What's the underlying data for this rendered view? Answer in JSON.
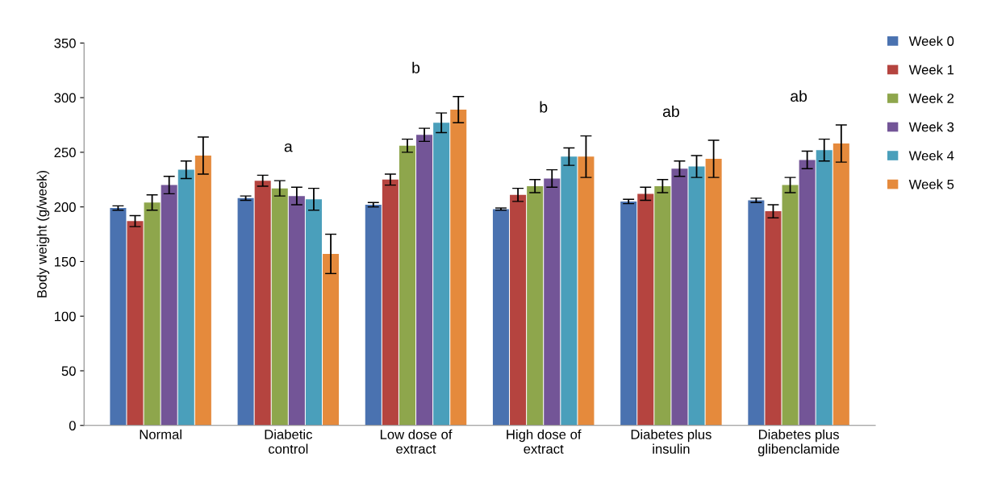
{
  "chart_data": {
    "type": "bar",
    "ylabel": "Body weight (g/week)",
    "categories": [
      "Normal",
      "Diabetic\ncontrol",
      "Low dose of\nextract",
      "High dose of\nextract",
      "Diabetes plus\ninsulin",
      "Diabetes plus\nglibenclamide"
    ],
    "series": [
      {
        "name": "Week 0",
        "color": "#4a72b0",
        "values": [
          199,
          208,
          202,
          198,
          205,
          206
        ],
        "errors": [
          2,
          2,
          2,
          1,
          2,
          2
        ]
      },
      {
        "name": "Week 1",
        "color": "#b5443f",
        "values": [
          187,
          224,
          225,
          211,
          212,
          196
        ],
        "errors": [
          5,
          5,
          5,
          6,
          6,
          6
        ]
      },
      {
        "name": "Week 2",
        "color": "#8ea64c",
        "values": [
          204,
          217,
          256,
          219,
          219,
          220
        ],
        "errors": [
          7,
          7,
          6,
          6,
          6,
          7
        ]
      },
      {
        "name": "Week 3",
        "color": "#735597",
        "values": [
          220,
          210,
          266,
          226,
          235,
          243
        ],
        "errors": [
          8,
          8,
          6,
          8,
          7,
          8
        ]
      },
      {
        "name": "Week 4",
        "color": "#4a9fbb",
        "values": [
          234,
          207,
          277,
          246,
          237,
          252
        ],
        "errors": [
          8,
          10,
          9,
          8,
          10,
          10
        ]
      },
      {
        "name": "Week 5",
        "color": "#e58a3c",
        "values": [
          247,
          157,
          289,
          246,
          244,
          258
        ],
        "errors": [
          17,
          18,
          12,
          19,
          17,
          17
        ]
      }
    ],
    "annotations": [
      "a",
      "b",
      "b",
      "ab",
      "ab"
    ],
    "ylim": [
      0,
      350
    ],
    "yticks": [
      0,
      50,
      100,
      150,
      200,
      250,
      300,
      350
    ],
    "grid": false,
    "legend": "top right"
  }
}
